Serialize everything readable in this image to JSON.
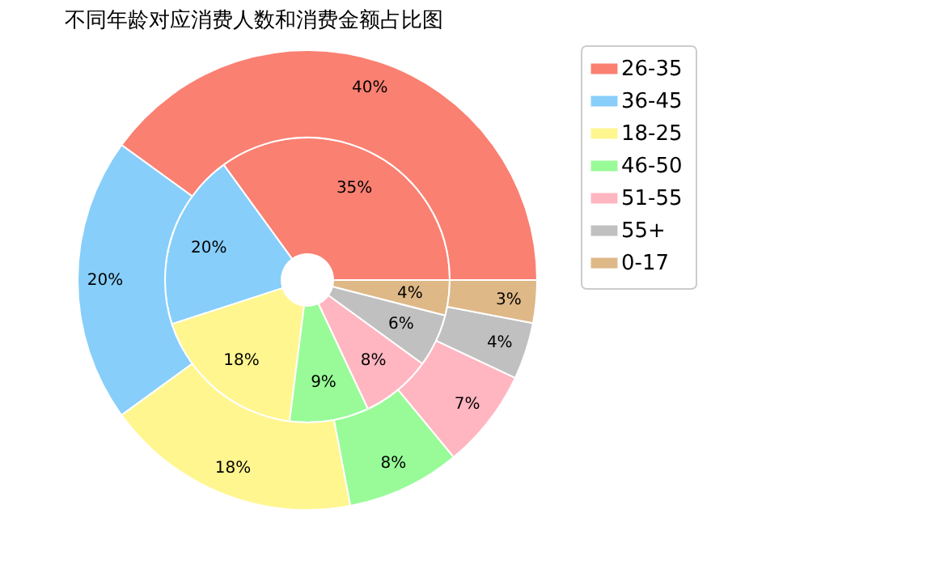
{
  "chart_data": {
    "type": "donut",
    "title": "不同年龄对应消费人数和消费金额占比图",
    "categories": [
      "26-35",
      "36-45",
      "18-25",
      "46-50",
      "51-55",
      "55+",
      "0-17"
    ],
    "colors": [
      "#fa8072",
      "#87cefa",
      "#fff68f",
      "#98fb98",
      "#ffb6c1",
      "#c0c0c0",
      "#deb887"
    ],
    "series": [
      {
        "values": [
          35,
          20,
          18,
          9,
          8,
          6,
          4
        ],
        "value_labels": [
          "35%",
          "20%",
          "18%",
          "9%",
          "8%",
          "6%",
          "4%"
        ]
      },
      {
        "values": [
          40,
          20,
          18,
          8,
          7,
          4,
          3
        ],
        "value_labels": [
          "40%",
          "20%",
          "18%",
          "8%",
          "7%",
          "4%",
          "3%"
        ]
      }
    ],
    "legend": "top right"
  }
}
